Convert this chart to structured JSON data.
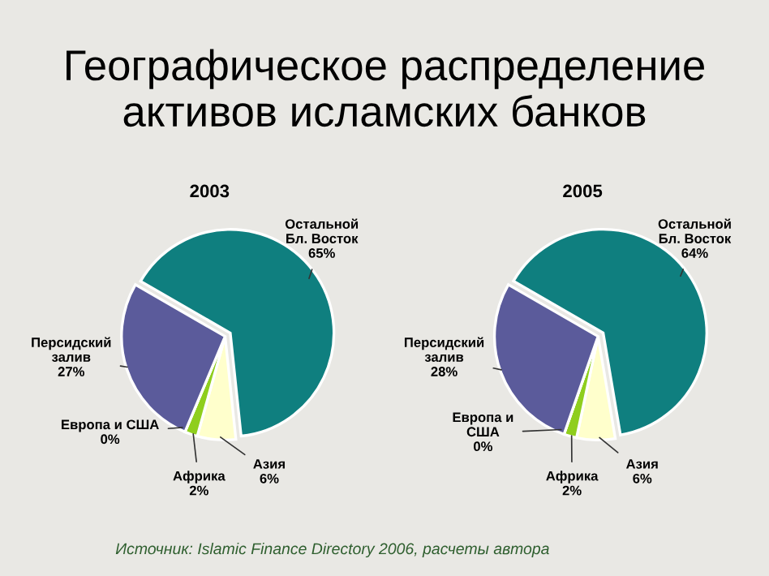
{
  "chart_data": [
    {
      "type": "pie",
      "title": "2003",
      "categories": [
        "Остальной\nБл. Восток",
        "Азия",
        "Африка",
        "Европа и США",
        "Персидский\nзалив"
      ],
      "values": [
        65,
        6,
        2,
        0,
        27
      ],
      "value_labels": [
        "65%",
        "6%",
        "2%",
        "0%",
        "27%"
      ],
      "colors": [
        "#0f7f7f",
        "#ffffcc",
        "#8fce1e",
        "#5a5a2a",
        "#5b5b9b"
      ],
      "annotations": [
        "Географическое распределение активов исламских банков",
        "Источник: Islamic Finance Directory 2006, расчеты автора"
      ]
    },
    {
      "type": "pie",
      "title": "2005",
      "categories": [
        "Остальной\nБл. Восток",
        "Азия",
        "Африка",
        "Европа и\nСША",
        "Персидский\nзалив"
      ],
      "values": [
        64,
        6,
        2,
        0,
        28
      ],
      "value_labels": [
        "64%",
        "6%",
        "2%",
        "0%",
        "28%"
      ],
      "colors": [
        "#0f7f7f",
        "#ffffcc",
        "#8fce1e",
        "#5a5a2a",
        "#5b5b9b"
      ]
    }
  ]
}
